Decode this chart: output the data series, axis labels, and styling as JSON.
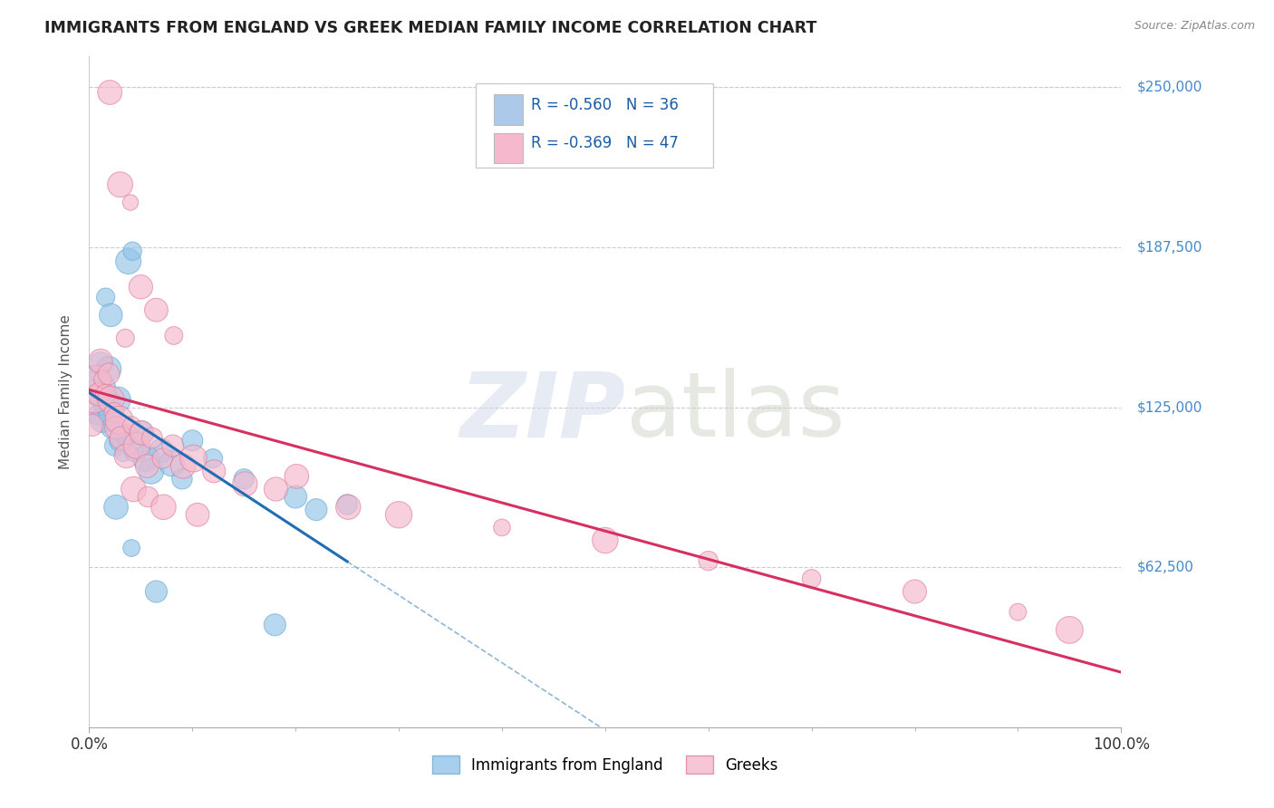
{
  "title": "IMMIGRANTS FROM ENGLAND VS GREEK MEDIAN FAMILY INCOME CORRELATION CHART",
  "source_text": "Source: ZipAtlas.com",
  "ylabel": "Median Family Income",
  "xlim": [
    0,
    100
  ],
  "ylim": [
    0,
    262000
  ],
  "yticks": [
    62500,
    125000,
    187500,
    250000
  ],
  "ytick_labels": [
    "$62,500",
    "$125,000",
    "$187,500",
    "$250,000"
  ],
  "xticks": [
    0,
    100
  ],
  "xtick_labels": [
    "0.0%",
    "100.0%"
  ],
  "legend_entries": [
    {
      "label": "R = -0.560   N = 36",
      "color": "#adc9ea"
    },
    {
      "label": "R = -0.369   N = 47",
      "color": "#f5b8cc"
    }
  ],
  "legend_bottom": [
    "Immigrants from England",
    "Greeks"
  ],
  "watermark_zip": "ZIP",
  "watermark_atlas": "atlas",
  "background_color": "#ffffff",
  "grid_color": "#cccccc",
  "title_color": "#222222",
  "axis_label_color": "#555555",
  "ytick_color": "#4488cc",
  "england_color": "#93c4e8",
  "england_edge": "#6baed6",
  "england_line": "#1f6eb5",
  "greek_color": "#f5b8cc",
  "greek_edge": "#e080a0",
  "greek_line": "#d63060",
  "england_points": [
    [
      0.5,
      131000
    ],
    [
      0.8,
      122000
    ],
    [
      1.0,
      138000
    ],
    [
      1.1,
      142000
    ],
    [
      1.3,
      120000
    ],
    [
      1.5,
      133000
    ],
    [
      1.7,
      127000
    ],
    [
      1.9,
      140000
    ],
    [
      2.0,
      122000
    ],
    [
      2.2,
      117000
    ],
    [
      2.5,
      110000
    ],
    [
      2.8,
      128000
    ],
    [
      3.0,
      112000
    ],
    [
      3.3,
      107000
    ],
    [
      3.6,
      114000
    ],
    [
      3.8,
      182000
    ],
    [
      4.2,
      186000
    ],
    [
      1.6,
      168000
    ],
    [
      2.1,
      161000
    ],
    [
      4.5,
      108000
    ],
    [
      5.0,
      115000
    ],
    [
      5.5,
      105000
    ],
    [
      6.0,
      100000
    ],
    [
      7.0,
      108000
    ],
    [
      8.0,
      103000
    ],
    [
      9.0,
      97000
    ],
    [
      10.0,
      112000
    ],
    [
      12.0,
      105000
    ],
    [
      15.0,
      97000
    ],
    [
      2.6,
      86000
    ],
    [
      4.1,
      70000
    ],
    [
      6.5,
      53000
    ],
    [
      18.0,
      40000
    ],
    [
      20.0,
      90000
    ],
    [
      22.0,
      85000
    ],
    [
      25.0,
      87000
    ]
  ],
  "greek_points": [
    [
      0.3,
      118000
    ],
    [
      0.5,
      128000
    ],
    [
      0.7,
      136000
    ],
    [
      0.9,
      130000
    ],
    [
      1.1,
      143000
    ],
    [
      1.3,
      136000
    ],
    [
      1.6,
      130000
    ],
    [
      1.9,
      138000
    ],
    [
      2.1,
      128000
    ],
    [
      2.4,
      123000
    ],
    [
      2.6,
      117000
    ],
    [
      2.9,
      120000
    ],
    [
      3.1,
      113000
    ],
    [
      3.6,
      106000
    ],
    [
      4.1,
      118000
    ],
    [
      4.6,
      110000
    ],
    [
      5.1,
      115000
    ],
    [
      5.6,
      102000
    ],
    [
      6.1,
      113000
    ],
    [
      7.1,
      105000
    ],
    [
      8.1,
      110000
    ],
    [
      9.1,
      102000
    ],
    [
      10.1,
      105000
    ],
    [
      12.1,
      100000
    ],
    [
      15.1,
      95000
    ],
    [
      18.1,
      93000
    ],
    [
      20.1,
      98000
    ],
    [
      25.1,
      86000
    ],
    [
      30.0,
      83000
    ],
    [
      40.0,
      78000
    ],
    [
      50.0,
      73000
    ],
    [
      60.0,
      65000
    ],
    [
      70.0,
      58000
    ],
    [
      80.0,
      53000
    ],
    [
      90.0,
      45000
    ],
    [
      95.0,
      38000
    ],
    [
      2.0,
      248000
    ],
    [
      3.0,
      212000
    ],
    [
      4.0,
      205000
    ],
    [
      5.0,
      172000
    ],
    [
      6.5,
      163000
    ],
    [
      3.5,
      152000
    ],
    [
      8.2,
      153000
    ],
    [
      4.3,
      93000
    ],
    [
      5.7,
      90000
    ],
    [
      7.2,
      86000
    ],
    [
      10.5,
      83000
    ]
  ]
}
